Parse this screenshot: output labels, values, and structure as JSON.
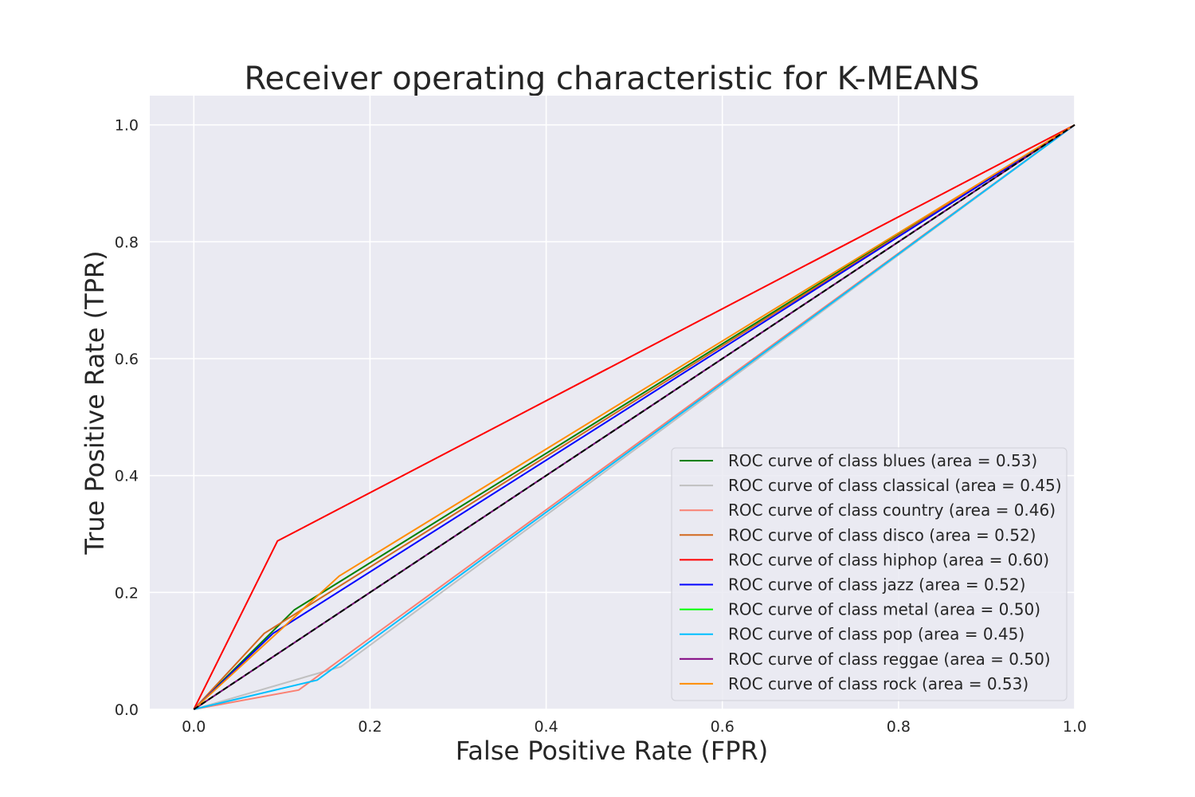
{
  "chart_data": {
    "type": "line",
    "title": "Receiver operating characteristic for K-MEANS",
    "xlabel": "False Positive Rate (FPR)",
    "ylabel": "True Positive Rate (TPR)",
    "xlim": [
      -0.05,
      1.0
    ],
    "ylim": [
      0.0,
      1.05
    ],
    "xticks": [
      "0.0",
      "0.2",
      "0.4",
      "0.6",
      "0.8",
      "1.0"
    ],
    "yticks": [
      "0.0",
      "0.2",
      "0.4",
      "0.6",
      "0.8",
      "1.0"
    ],
    "grid": true,
    "background": "#eaeaf2",
    "legend_position": "lower-right",
    "diagonal": {
      "x": [
        0,
        1
      ],
      "y": [
        0,
        1
      ],
      "color": "#000000",
      "style": "dashed"
    },
    "series": [
      {
        "name": "ROC curve of class blues (area = 0.53)",
        "color": "#008000",
        "x": [
          0,
          0.114,
          1
        ],
        "y": [
          0,
          0.17,
          1
        ]
      },
      {
        "name": "ROC curve of class classical (area = 0.45)",
        "color": "#c0c0c0",
        "x": [
          0,
          0.167,
          1
        ],
        "y": [
          0,
          0.073,
          1
        ]
      },
      {
        "name": "ROC curve of class country (area = 0.46)",
        "color": "#fa8072",
        "x": [
          0,
          0.119,
          1
        ],
        "y": [
          0,
          0.033,
          1
        ]
      },
      {
        "name": "ROC curve of class disco (area = 0.52)",
        "color": "#d2691e",
        "x": [
          0,
          0.08,
          1
        ],
        "y": [
          0,
          0.13,
          1
        ]
      },
      {
        "name": "ROC curve of class hiphop (area = 0.60)",
        "color": "#ff0000",
        "x": [
          0,
          0.095,
          1
        ],
        "y": [
          0,
          0.288,
          1
        ]
      },
      {
        "name": "ROC curve of class jazz (area = 0.52)",
        "color": "#0000ff",
        "x": [
          0,
          0.09,
          1
        ],
        "y": [
          0,
          0.13,
          1
        ]
      },
      {
        "name": "ROC curve of class metal (area = 0.50)",
        "color": "#00ff00",
        "x": [
          0,
          1
        ],
        "y": [
          0,
          1
        ]
      },
      {
        "name": "ROC curve of class pop (area = 0.45)",
        "color": "#00bfff",
        "x": [
          0,
          0.14,
          1
        ],
        "y": [
          0,
          0.05,
          1
        ]
      },
      {
        "name": "ROC curve of class reggae (area = 0.50)",
        "color": "#800080",
        "x": [
          0,
          1
        ],
        "y": [
          0,
          1
        ]
      },
      {
        "name": "ROC curve of class rock (area = 0.53)",
        "color": "#ff8c00",
        "x": [
          0,
          0.165,
          1
        ],
        "y": [
          0,
          0.228,
          1
        ]
      }
    ]
  }
}
